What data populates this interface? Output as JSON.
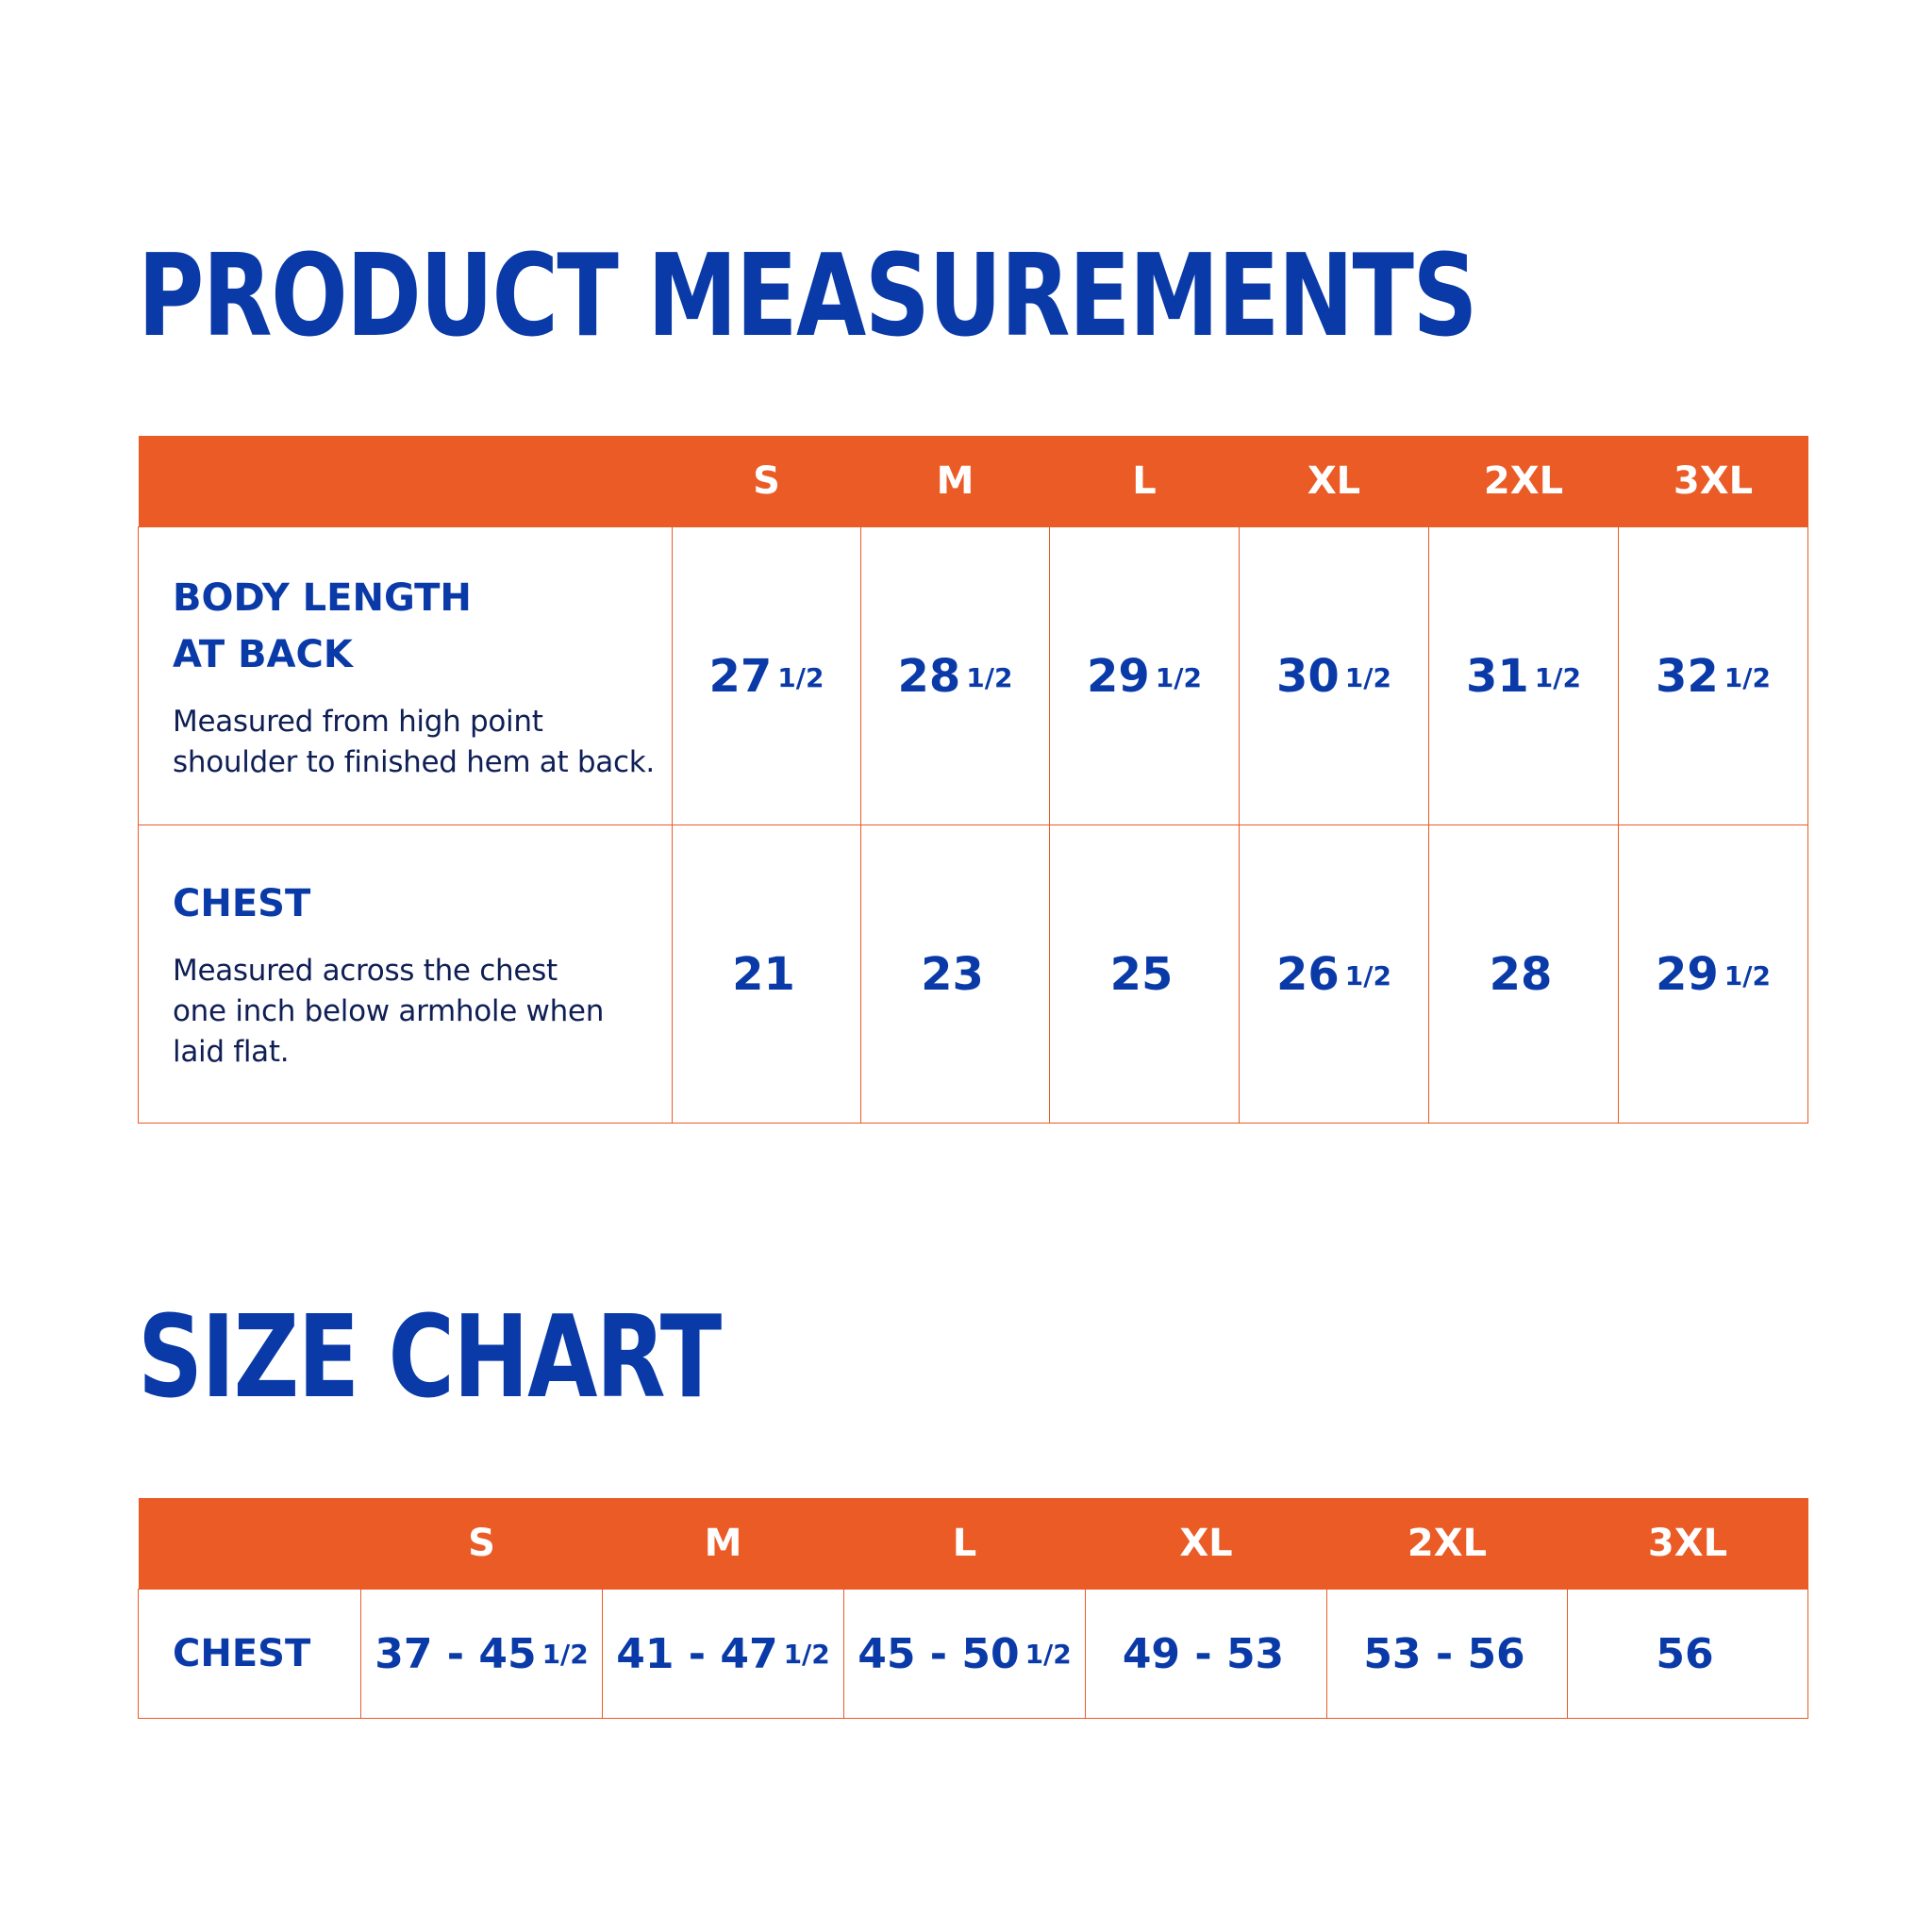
{
  "product_measurements": {
    "title": "PRODUCT MEASUREMENTS",
    "sizes": [
      "S",
      "M",
      "L",
      "XL",
      "2XL",
      "3XL"
    ],
    "rows": [
      {
        "title_line1": "BODY LENGTH",
        "title_line2": "AT BACK",
        "description_line1": "Measured from high point",
        "description_line2": "shoulder to finished hem at back.",
        "description_line3": "",
        "values": [
          {
            "whole": "27",
            "frac": "1/2"
          },
          {
            "whole": "28",
            "frac": "1/2"
          },
          {
            "whole": "29",
            "frac": "1/2"
          },
          {
            "whole": "30",
            "frac": "1/2"
          },
          {
            "whole": "31",
            "frac": "1/2"
          },
          {
            "whole": "32",
            "frac": "1/2"
          }
        ]
      },
      {
        "title_line1": "CHEST",
        "title_line2": "",
        "description_line1": "Measured across the chest",
        "description_line2": "one inch below armhole when",
        "description_line3": "laid flat.",
        "values": [
          {
            "whole": "21",
            "frac": ""
          },
          {
            "whole": "23",
            "frac": ""
          },
          {
            "whole": "25",
            "frac": ""
          },
          {
            "whole": "26",
            "frac": "1/2"
          },
          {
            "whole": "28",
            "frac": ""
          },
          {
            "whole": "29",
            "frac": "1/2"
          }
        ]
      }
    ]
  },
  "size_chart": {
    "title": "SIZE CHART",
    "sizes": [
      "S",
      "M",
      "L",
      "XL",
      "2XL",
      "3XL"
    ],
    "row_label": "CHEST",
    "values": [
      {
        "range": "37 - 45",
        "frac": "1/2"
      },
      {
        "range": "41 - 47",
        "frac": "1/2"
      },
      {
        "range": "45 - 50",
        "frac": "1/2"
      },
      {
        "range": "49 - 53",
        "frac": ""
      },
      {
        "range": "53 - 56",
        "frac": ""
      },
      {
        "range": "56",
        "frac": ""
      }
    ]
  },
  "colors": {
    "heading_blue": "#0a3aa8",
    "header_orange": "#ea5b26",
    "description_navy": "#0f1f55",
    "background": "#ffffff"
  }
}
